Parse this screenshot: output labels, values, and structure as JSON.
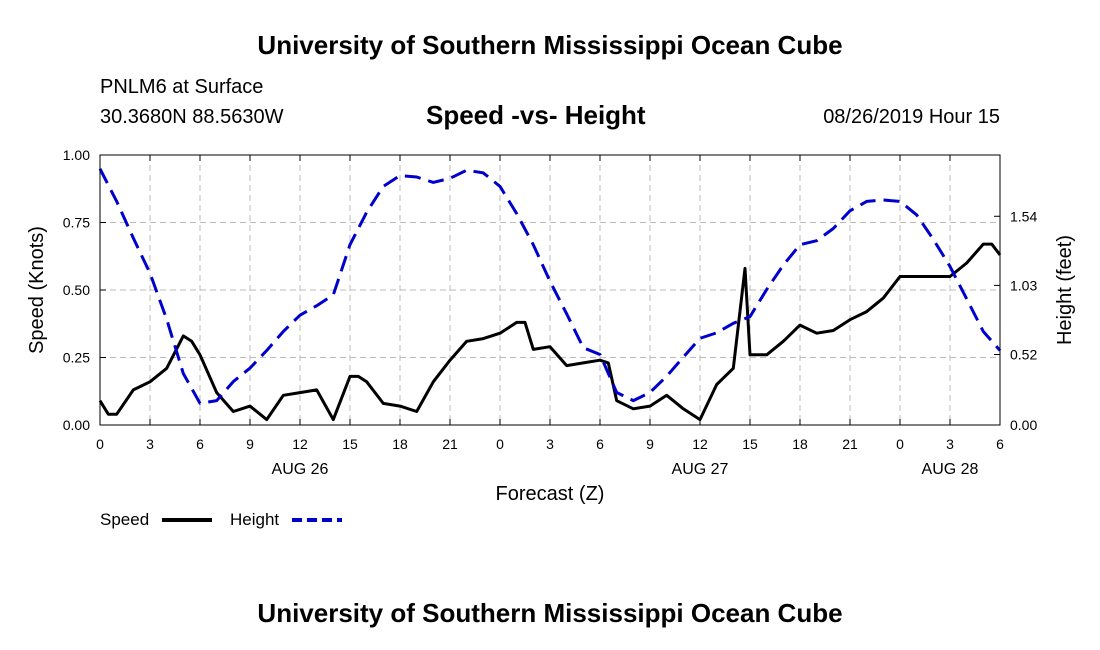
{
  "header": {
    "title": "University of Southern Mississippi Ocean Cube",
    "station": "PNLM6 at Surface",
    "coordinates": "30.3680N 88.5630W",
    "subtitle": "Speed -vs- Height",
    "datetime": "08/26/2019 Hour 15"
  },
  "footer": {
    "title": "University of Southern Mississippi Ocean Cube"
  },
  "legend": {
    "speed_label": "Speed",
    "height_label": "Height"
  },
  "colors": {
    "speed": "#000000",
    "height": "#0000cc",
    "grid": "#bbbbbb"
  },
  "chart_data": {
    "type": "line",
    "title": "Speed -vs- Height",
    "xlabel": "Forecast (Z)",
    "ylabel": "Speed (Knots)",
    "y2label": "Height (feet)",
    "xlim": [
      0,
      54
    ],
    "ylim": [
      0,
      1.0
    ],
    "y2lim": [
      0,
      1.992
    ],
    "x_ticks": [
      0,
      3,
      6,
      9,
      12,
      15,
      18,
      21,
      24,
      27,
      30,
      33,
      36,
      39,
      42,
      45,
      48,
      51,
      54
    ],
    "x_tick_labels": [
      "0",
      "3",
      "6",
      "9",
      "12",
      "15",
      "18",
      "21",
      "0",
      "3",
      "6",
      "9",
      "12",
      "15",
      "18",
      "21",
      "0",
      "3",
      "6"
    ],
    "y_ticks": [
      0,
      0.25,
      0.5,
      0.75,
      1.0
    ],
    "y_tick_labels": [
      "0.00",
      "0.25",
      "0.50",
      "0.75",
      "1.00"
    ],
    "y2_ticks": [
      0,
      0.52,
      1.03,
      1.54
    ],
    "y2_tick_labels": [
      "0.00",
      "0.52",
      "1.03",
      "1.54"
    ],
    "date_labels": [
      {
        "x": 12,
        "label": "AUG 26"
      },
      {
        "x": 36,
        "label": "AUG 27"
      },
      {
        "x": 51,
        "label": "AUG 28"
      }
    ],
    "grid": true,
    "legend_position": "bottom-left",
    "series": [
      {
        "name": "Speed",
        "axis": "left",
        "style": "solid",
        "x": [
          0,
          0.5,
          1,
          2,
          3,
          4,
          5,
          5.5,
          6,
          7,
          8,
          8.5,
          9,
          10,
          11,
          12,
          13,
          14,
          15,
          15.5,
          16,
          17,
          18,
          19,
          20,
          21,
          22,
          23,
          24,
          25,
          25.5,
          26,
          27,
          28,
          29,
          30,
          30.5,
          31,
          32,
          33,
          34,
          35,
          36,
          37,
          38,
          38.7,
          39,
          40,
          41,
          42,
          43,
          44,
          45,
          46,
          47,
          48,
          49,
          50,
          51,
          52,
          53,
          53.5,
          54
        ],
        "values": [
          0.09,
          0.04,
          0.04,
          0.13,
          0.16,
          0.21,
          0.33,
          0.31,
          0.26,
          0.12,
          0.05,
          0.06,
          0.07,
          0.02,
          0.11,
          0.12,
          0.13,
          0.02,
          0.18,
          0.18,
          0.16,
          0.08,
          0.07,
          0.05,
          0.16,
          0.24,
          0.31,
          0.32,
          0.34,
          0.38,
          0.38,
          0.28,
          0.29,
          0.22,
          0.23,
          0.24,
          0.23,
          0.09,
          0.06,
          0.07,
          0.11,
          0.06,
          0.02,
          0.15,
          0.21,
          0.58,
          0.26,
          0.26,
          0.31,
          0.37,
          0.34,
          0.35,
          0.39,
          0.42,
          0.47,
          0.55,
          0.55,
          0.55,
          0.55,
          0.6,
          0.67,
          0.67,
          0.63
        ]
      },
      {
        "name": "Height",
        "axis": "right",
        "style": "dashed",
        "x": [
          0,
          1,
          2,
          3,
          4,
          5,
          6,
          7,
          8,
          9,
          10,
          11,
          12,
          13,
          14,
          15,
          16,
          17,
          18,
          19,
          20,
          21,
          22,
          23,
          24,
          25,
          26,
          27,
          28,
          29,
          30,
          31,
          32,
          33,
          34,
          35,
          36,
          37,
          38,
          39,
          40,
          41,
          42,
          43,
          44,
          45,
          46,
          47,
          48,
          49,
          50,
          51,
          52,
          53,
          54
        ],
        "values": [
          1.89,
          1.65,
          1.38,
          1.12,
          0.78,
          0.38,
          0.16,
          0.18,
          0.32,
          0.42,
          0.55,
          0.69,
          0.81,
          0.88,
          0.96,
          1.33,
          1.57,
          1.76,
          1.84,
          1.83,
          1.79,
          1.82,
          1.88,
          1.86,
          1.76,
          1.56,
          1.33,
          1.06,
          0.82,
          0.57,
          0.52,
          0.24,
          0.18,
          0.24,
          0.36,
          0.5,
          0.64,
          0.68,
          0.75,
          0.8,
          1.0,
          1.18,
          1.33,
          1.36,
          1.45,
          1.58,
          1.65,
          1.66,
          1.65,
          1.55,
          1.37,
          1.17,
          0.93,
          0.69,
          0.55
        ]
      }
    ]
  }
}
